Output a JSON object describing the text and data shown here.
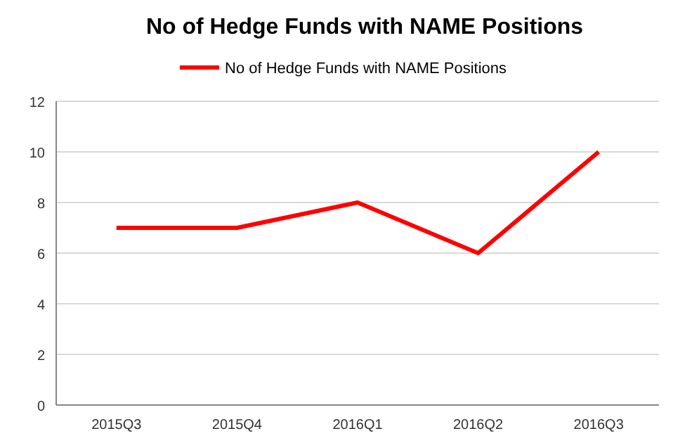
{
  "chart_data": {
    "type": "line",
    "title": "No of Hedge Funds with NAME Positions",
    "categories": [
      "2015Q3",
      "2015Q4",
      "2016Q1",
      "2016Q2",
      "2016Q3"
    ],
    "series": [
      {
        "name": "No of Hedge Funds with NAME Positions",
        "color": "#ff0000",
        "values": [
          7,
          7,
          8,
          6,
          10
        ]
      }
    ],
    "ylim": [
      0,
      12
    ],
    "yticks": [
      0,
      2,
      4,
      6,
      8,
      10,
      12
    ],
    "grid": "y",
    "legend": "top",
    "marker": "none",
    "line_style": "solid"
  }
}
